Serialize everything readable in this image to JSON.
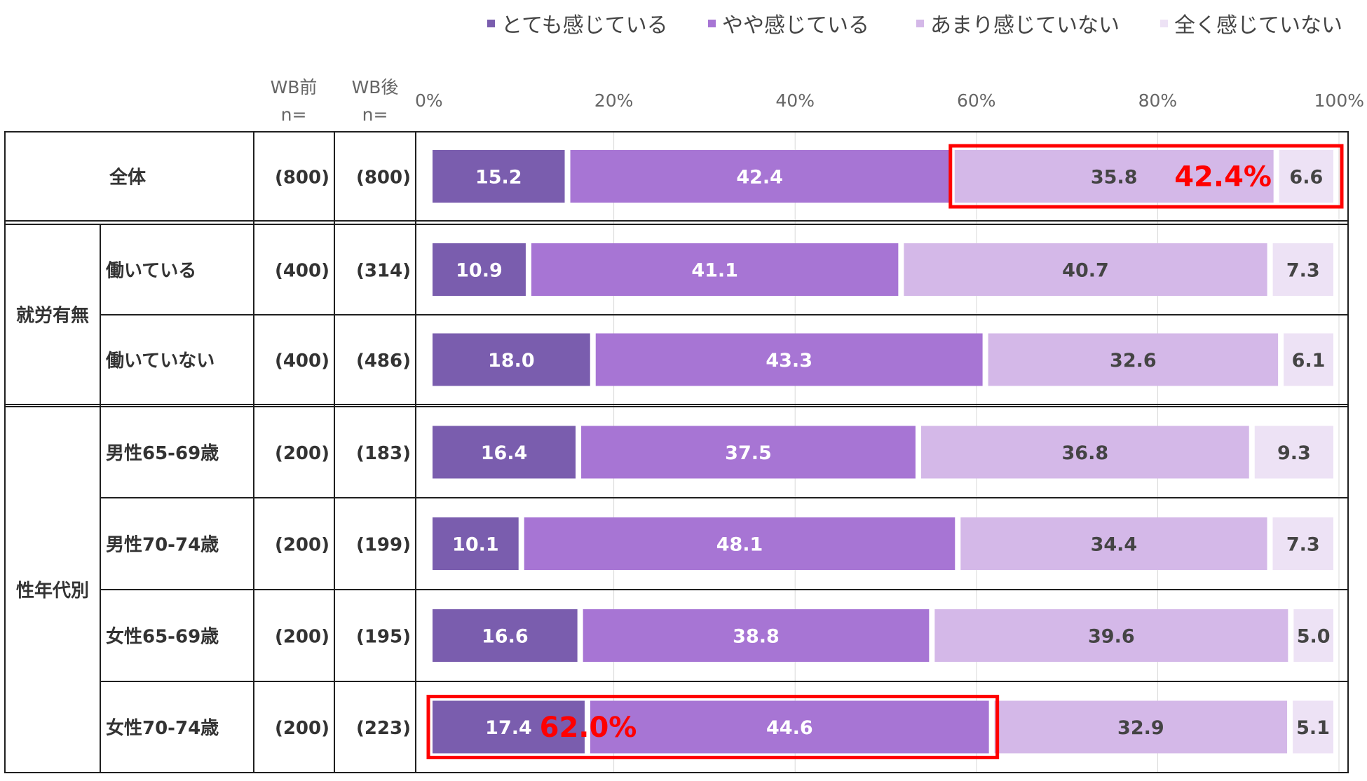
{
  "chart_data": {
    "type": "bar",
    "stacked": true,
    "orientation": "horizontal",
    "percent_axis": true,
    "xlim": [
      0,
      100
    ],
    "x_ticks": [
      "0%",
      "20%",
      "40%",
      "60%",
      "80%",
      "100%"
    ],
    "grid": true,
    "legend_position": "top-right",
    "columns": {
      "before": "WB前\nn=",
      "after": "WB後\nn="
    },
    "series": [
      {
        "name": "とても感じている",
        "color": "#7A5DAE"
      },
      {
        "name": "やや感じている",
        "color": "#A775D4"
      },
      {
        "name": "あまり感じていない",
        "color": "#D4B8E8"
      },
      {
        "name": "全く感じていない",
        "color": "#EDE2F5"
      }
    ],
    "groups": [
      {
        "label": "",
        "rows": [
          0
        ]
      },
      {
        "label": "就労有無",
        "rows": [
          1,
          2
        ]
      },
      {
        "label": "性年代別",
        "rows": [
          3,
          4,
          5,
          6
        ]
      }
    ],
    "rows": [
      {
        "label": "全体",
        "n_before": "(800)",
        "n_after": "(800)",
        "values": [
          15.2,
          42.4,
          35.8,
          6.6
        ]
      },
      {
        "label": "働いている",
        "n_before": "(400)",
        "n_after": "(314)",
        "values": [
          10.9,
          41.1,
          40.7,
          7.3
        ]
      },
      {
        "label": "働いていない",
        "n_before": "(400)",
        "n_after": "(486)",
        "values": [
          18.0,
          43.3,
          32.6,
          6.1
        ]
      },
      {
        "label": "男性65-69歳",
        "n_before": "(200)",
        "n_after": "(183)",
        "values": [
          16.4,
          37.5,
          36.8,
          9.3
        ]
      },
      {
        "label": "男性70-74歳",
        "n_before": "(200)",
        "n_after": "(199)",
        "values": [
          10.1,
          48.1,
          34.4,
          7.3
        ]
      },
      {
        "label": "女性65-69歳",
        "n_before": "(200)",
        "n_after": "(195)",
        "values": [
          16.6,
          38.8,
          39.6,
          5.0
        ]
      },
      {
        "label": "女性70-74歳",
        "n_before": "(200)",
        "n_after": "(223)",
        "values": [
          17.4,
          44.6,
          32.9,
          5.1
        ]
      }
    ],
    "annotations": [
      {
        "text": "42.4%",
        "row": 0,
        "series": [
          2,
          3
        ],
        "color": "#FF0000"
      },
      {
        "text": "62.0%",
        "row": 6,
        "series": [
          0,
          1
        ],
        "color": "#FF0000"
      }
    ]
  }
}
